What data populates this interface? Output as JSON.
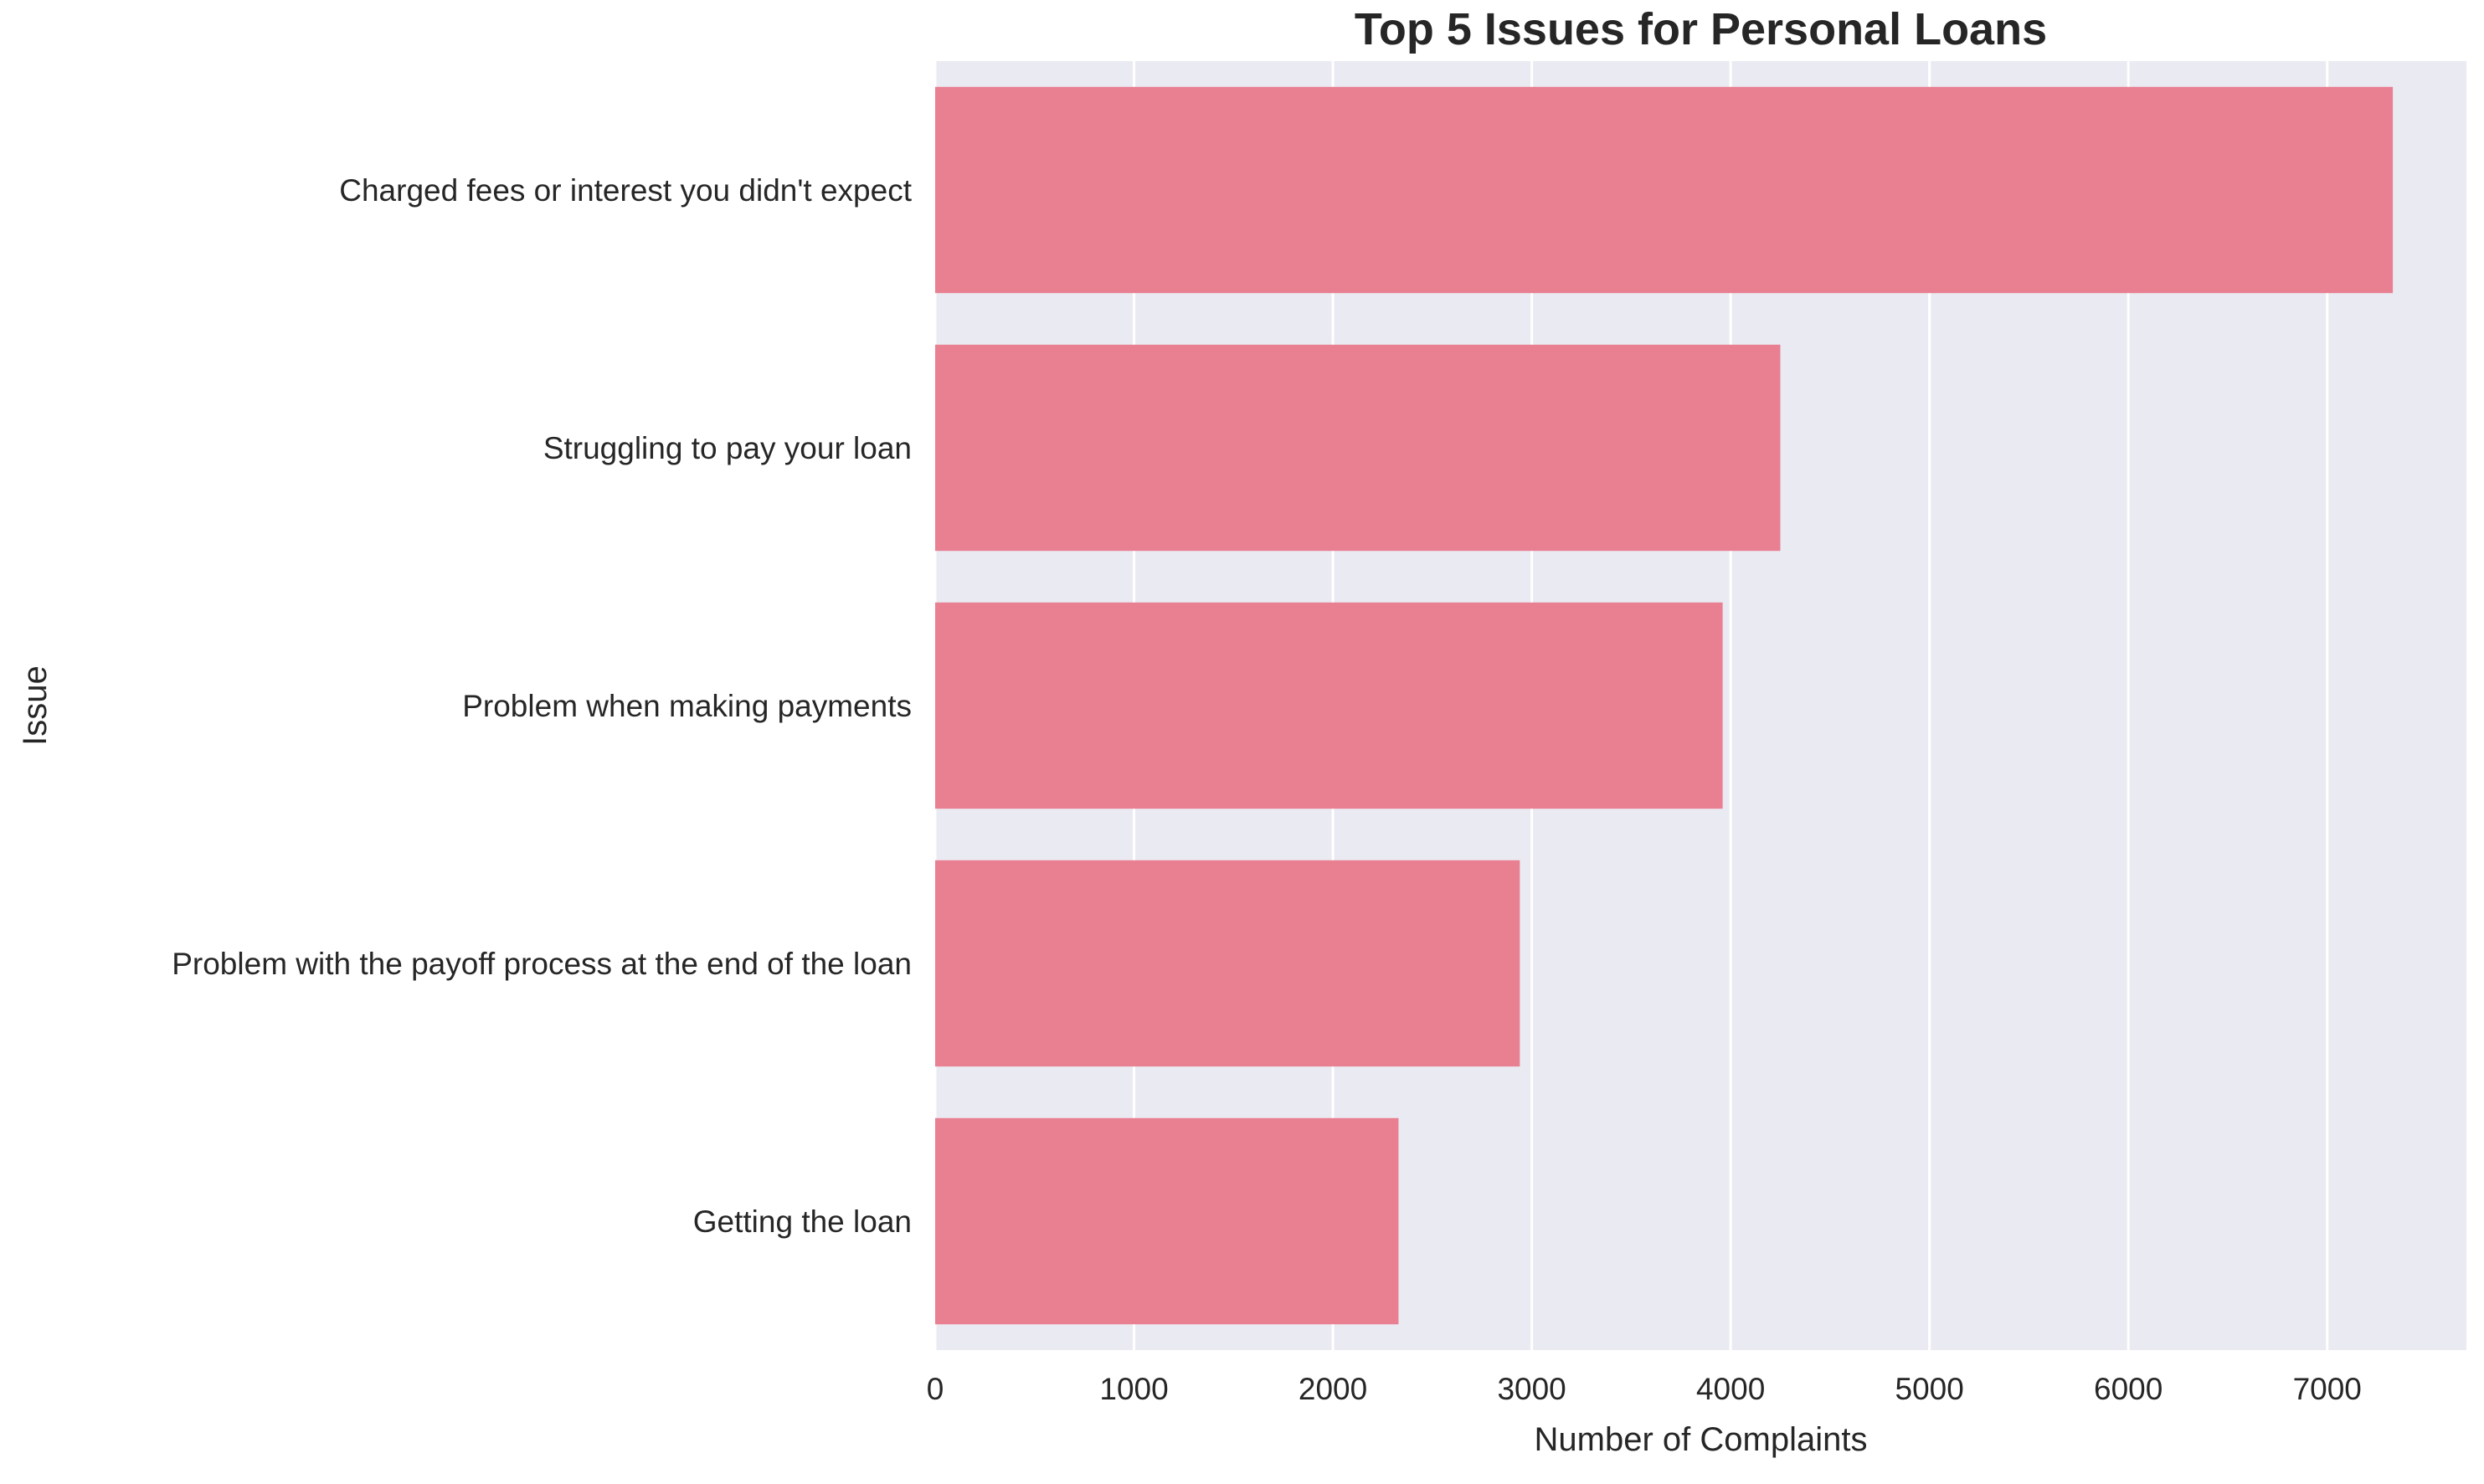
{
  "chart_data": {
    "type": "bar",
    "orientation": "horizontal",
    "title": "Top 5 Issues for Personal Loans",
    "xlabel": "Number of Complaints",
    "ylabel": "Issue",
    "categories": [
      "Charged fees or interest you didn't expect",
      "Struggling to pay your loan",
      "Problem when making payments",
      "Problem with the payoff process at the end of the loan",
      "Getting the loan"
    ],
    "values": [
      7330,
      4250,
      3960,
      2940,
      2330
    ],
    "xlim": [
      0,
      7700
    ],
    "xticks": [
      0,
      1000,
      2000,
      3000,
      4000,
      5000,
      6000,
      7000
    ],
    "xtick_labels": [
      "0",
      "1000",
      "2000",
      "3000",
      "4000",
      "5000",
      "6000",
      "7000"
    ],
    "grid": true,
    "bar_color": "#e88092",
    "background_color": "#eaeaf2",
    "grid_color": "#ffffff"
  }
}
